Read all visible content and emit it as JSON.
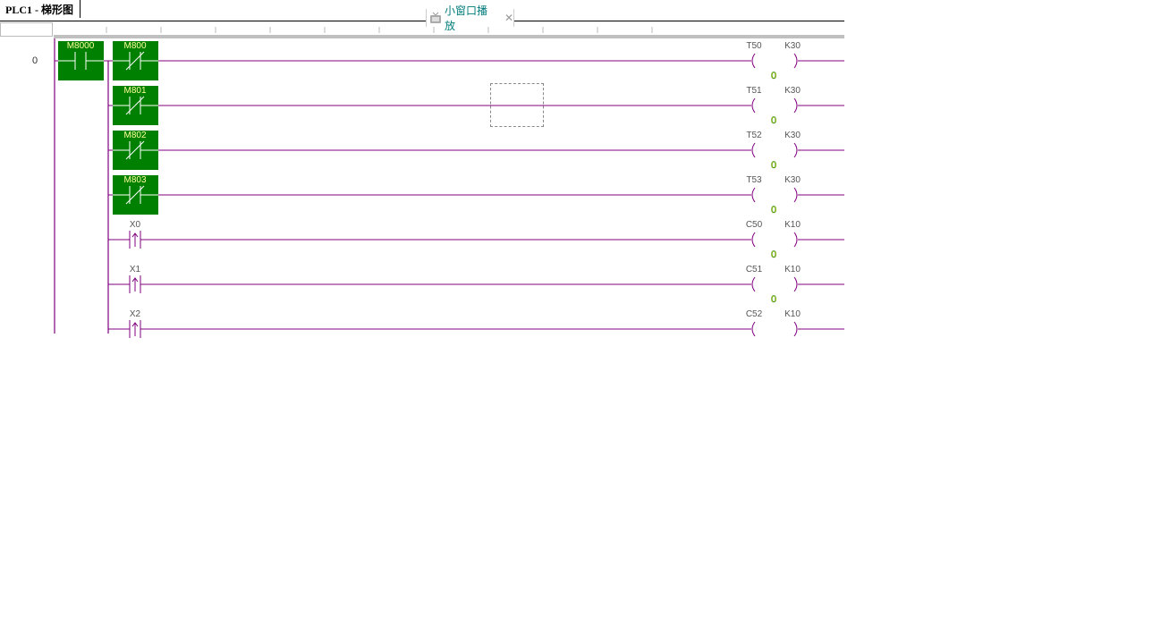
{
  "window": {
    "title": "PLC1 - 梯形图"
  },
  "tab": {
    "label": "小窗口播放",
    "icon": "tv-icon",
    "close": "✕"
  },
  "colors": {
    "wire": "#800080",
    "active": "#008000",
    "value": "#ffff00",
    "label": "#555555"
  },
  "rung_number": "0",
  "rungs": [
    {
      "contact": "M8000",
      "contact_type": "NO",
      "contact2": "M800",
      "contact2_type": "NC",
      "coil": "T50",
      "setpoint": "K30",
      "value": "0"
    },
    {
      "contact2": "M801",
      "contact2_type": "NC",
      "coil": "T51",
      "setpoint": "K30",
      "value": "0"
    },
    {
      "contact2": "M802",
      "contact2_type": "NC",
      "coil": "T52",
      "setpoint": "K30",
      "value": "0"
    },
    {
      "contact2": "M803",
      "contact2_type": "NC",
      "coil": "T53",
      "setpoint": "K30",
      "value": "0"
    },
    {
      "contact2": "X0",
      "contact2_type": "RISING",
      "coil": "C50",
      "setpoint": "K10",
      "value": "0"
    },
    {
      "contact2": "X1",
      "contact2_type": "RISING",
      "coil": "C51",
      "setpoint": "K10",
      "value": "0"
    },
    {
      "contact2": "X2",
      "contact2_type": "RISING",
      "coil": "C52",
      "setpoint": "K10"
    }
  ]
}
